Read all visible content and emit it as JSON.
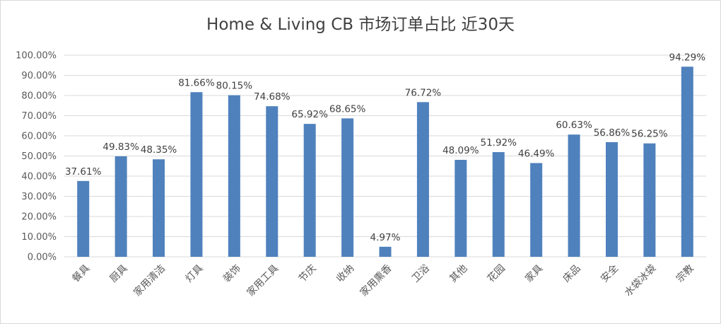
{
  "chart_data": {
    "type": "bar",
    "title": "Home & Living CB 市场订单占比 近30天",
    "xlabel": "",
    "ylabel": "",
    "ylim": [
      0,
      100
    ],
    "y_tick_step": 10,
    "y_tick_labels": [
      "0.00%",
      "10.00%",
      "20.00%",
      "30.00%",
      "40.00%",
      "50.00%",
      "60.00%",
      "70.00%",
      "80.00%",
      "90.00%",
      "100.00%"
    ],
    "grid": true,
    "legend": "none",
    "bar_color": "#4f81bd",
    "categories": [
      "餐具",
      "厨具",
      "家用清洁",
      "灯具",
      "装饰",
      "家用工具",
      "节庆",
      "收纳",
      "家用熏香",
      "卫浴",
      "其他",
      "花园",
      "家具",
      "床品",
      "安全",
      "水袋冰袋",
      "宗教"
    ],
    "values": [
      37.61,
      49.83,
      48.35,
      81.66,
      80.15,
      74.68,
      65.92,
      68.65,
      4.97,
      76.72,
      48.09,
      51.92,
      46.49,
      60.63,
      56.86,
      56.25,
      94.29
    ],
    "data_labels": [
      "37.61%",
      "49.83%",
      "48.35%",
      "81.66%",
      "80.15%",
      "74.68%",
      "65.92%",
      "68.65%",
      "4.97%",
      "76.72%",
      "48.09%",
      "51.92%",
      "46.49%",
      "60.63%",
      "56.86%",
      "56.25%",
      "94.29%"
    ]
  }
}
